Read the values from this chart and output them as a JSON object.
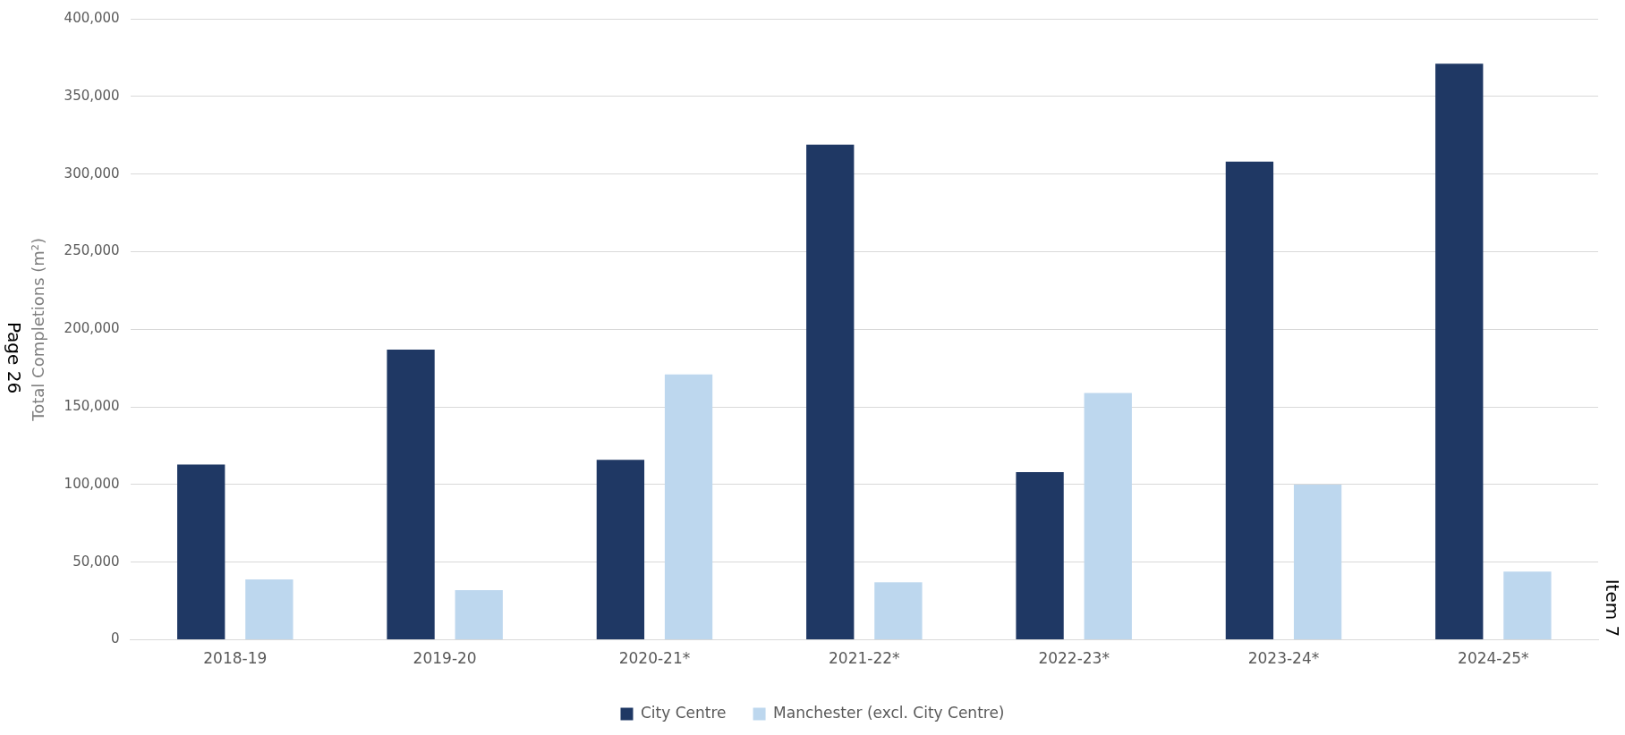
{
  "chart_data": {
    "type": "bar",
    "ylabel": "Total Completions (m²)",
    "categories": [
      "2018-19",
      "2019-20",
      "2020-21*",
      "2021-22*",
      "2022-23*",
      "2023-24*",
      "2024-25*"
    ],
    "series": [
      {
        "name": "City Centre",
        "color": "#1f3864",
        "values": [
          113000,
          187000,
          116000,
          319000,
          108000,
          308000,
          371000
        ]
      },
      {
        "name": "Manchester (excl. City Centre)",
        "color": "#bdd7ee",
        "values": [
          39000,
          32000,
          171000,
          37000,
          159000,
          100000,
          44000
        ]
      }
    ],
    "ylim": [
      0,
      400000
    ],
    "yticks": [
      {
        "value": 0,
        "label": "0"
      },
      {
        "value": 50000,
        "label": "50,000"
      },
      {
        "value": 100000,
        "label": "100,000"
      },
      {
        "value": 150000,
        "label": "150,000"
      },
      {
        "value": 200000,
        "label": "200,000"
      },
      {
        "value": 250000,
        "label": "250,000"
      },
      {
        "value": 300000,
        "label": "300,000"
      },
      {
        "value": 350000,
        "label": "350,000"
      },
      {
        "value": 400000,
        "label": "400,000"
      }
    ],
    "grid": "y",
    "legend": "bottom",
    "annotations": [
      "Page 26",
      "Item 7"
    ]
  }
}
